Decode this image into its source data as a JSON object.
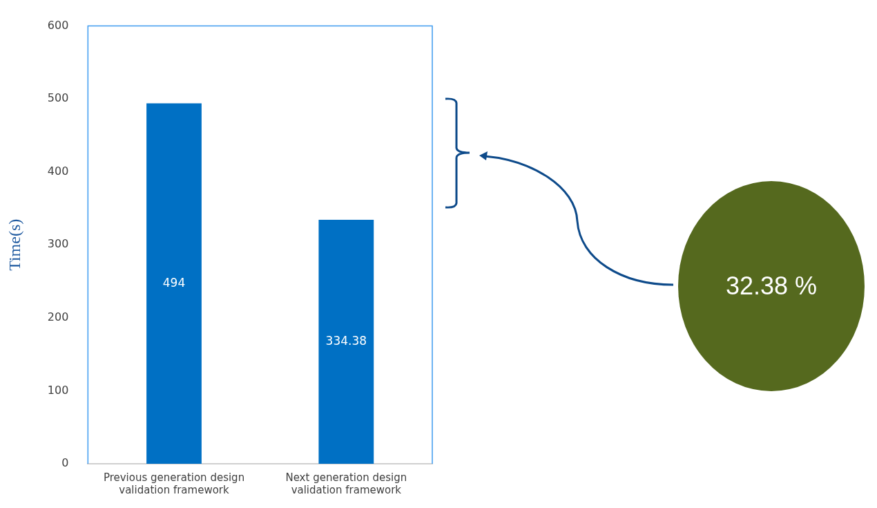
{
  "chart_data": {
    "type": "bar",
    "categories": [
      "Previous generation design validation framework",
      "Next generation design validation framework"
    ],
    "values": [
      494,
      334.38
    ],
    "color": "#0070c4",
    "ylabel": "Time(s)",
    "ylim": [
      0,
      600
    ],
    "yticks": [
      0,
      100,
      200,
      300,
      400,
      500,
      600
    ],
    "grid": false,
    "legend": false,
    "data_labels": true,
    "annotations": [
      "32.38 %"
    ]
  }
}
